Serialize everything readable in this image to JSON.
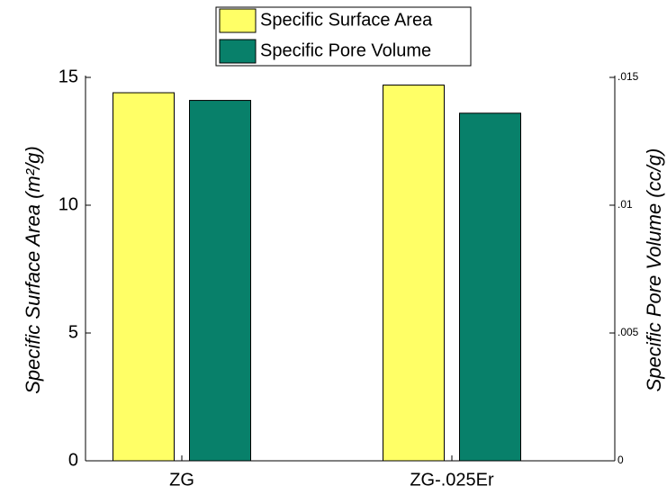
{
  "chart_data": {
    "type": "bar",
    "categories": [
      "ZG",
      "ZG-.025Er"
    ],
    "series": [
      {
        "name": "Specific Surface Area",
        "color": "#ffff66",
        "values": [
          14.4,
          14.7
        ]
      },
      {
        "name": "Specific Pore Volume",
        "color": "#08806a",
        "values": [
          0.0141,
          0.0136
        ],
        "axis": "y2"
      }
    ],
    "ylabel": "Specific Surface Area (m²/g)",
    "y2label": "Specific Pore Volume (cc/g)",
    "ylim": [
      0,
      15
    ],
    "yticks": [
      0,
      5,
      10,
      15
    ],
    "y2lim": [
      0,
      0.015
    ],
    "y2ticks": [
      0,
      {
        "value": 0.005,
        "label": ".005"
      },
      {
        "value": 0.01,
        "label": ".01"
      },
      {
        "value": 0.015,
        "label": ".015"
      }
    ],
    "legend": "top",
    "grid": false
  }
}
